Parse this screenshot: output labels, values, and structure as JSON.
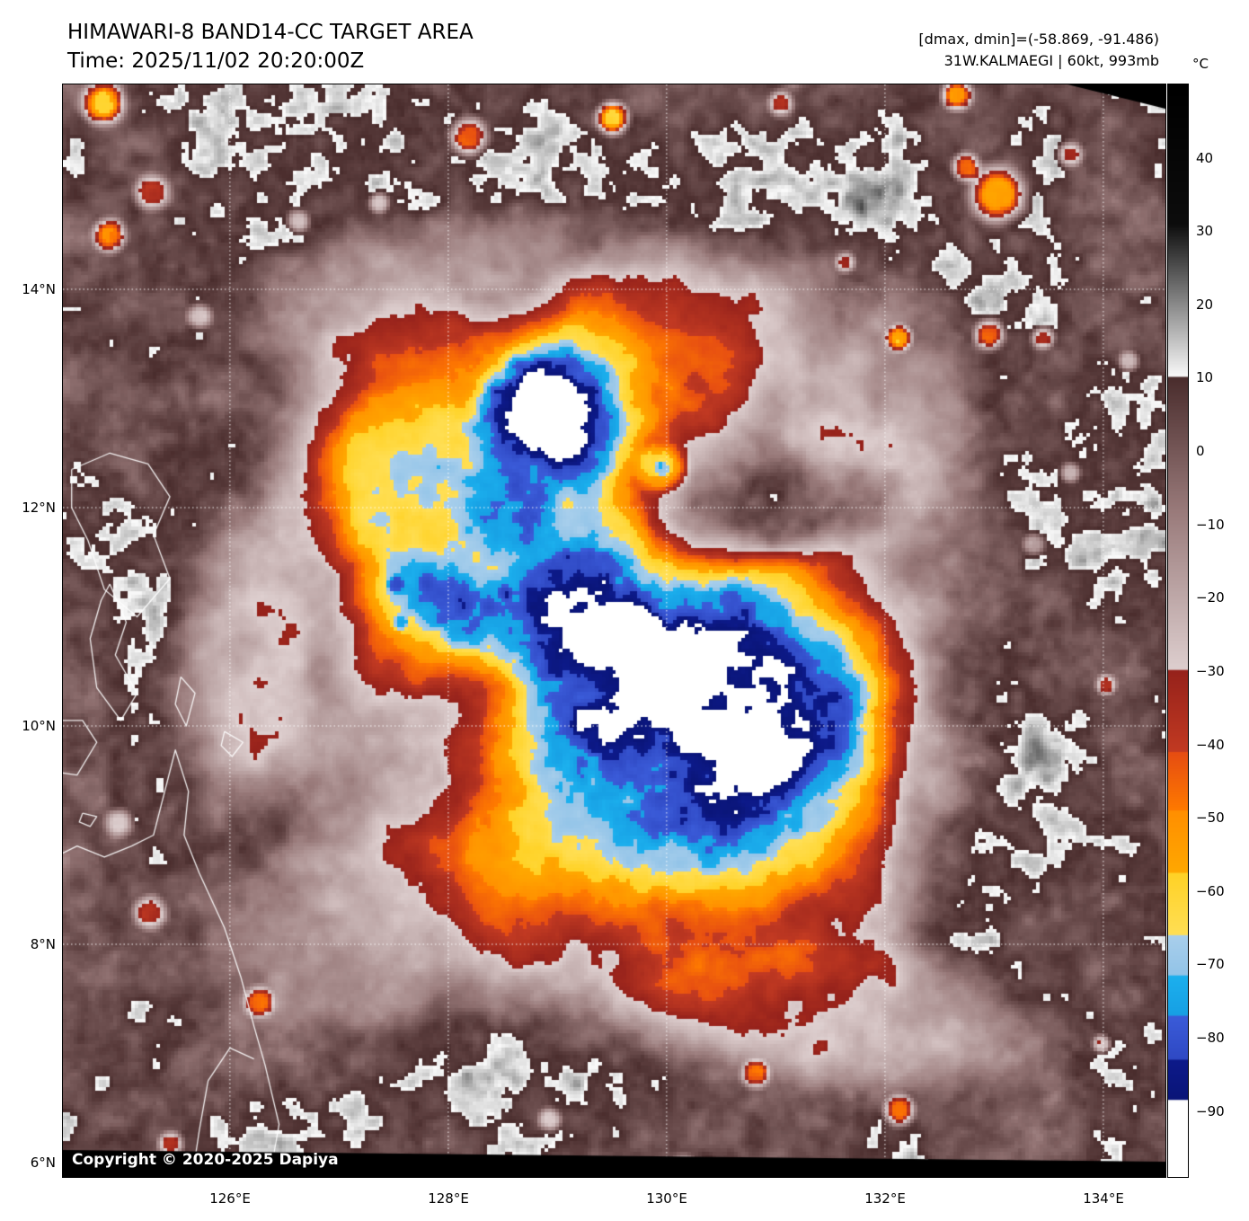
{
  "header": {
    "title": "HIMAWARI-8 BAND14-CC TARGET AREA",
    "time": "Time: 2025/11/02 20:20:00Z",
    "dmax_dmin": "[dmax, dmin]=(-58.869, -91.486)",
    "storm_info": "31W.KALMAEGI | 60kt, 993mb"
  },
  "colorbar": {
    "unit": "°C",
    "tick_labels": [
      "40",
      "30",
      "20",
      "10",
      "0",
      "−10",
      "−20",
      "−30",
      "−40",
      "−50",
      "−60",
      "−70",
      "−80",
      "−90"
    ],
    "stops": [
      [
        50,
        "#000000"
      ],
      [
        31,
        "#0d0d0d"
      ],
      [
        10.2,
        "#fafafa"
      ],
      [
        10.1,
        "#4a2d2d"
      ],
      [
        -8,
        "#997a7a"
      ],
      [
        -29.8,
        "#decfcf"
      ],
      [
        -29.9,
        "#96221b"
      ],
      [
        -41,
        "#c23a22"
      ],
      [
        -41.1,
        "#e64d12"
      ],
      [
        -49,
        "#ff7a00"
      ],
      [
        -49.1,
        "#ff8f00"
      ],
      [
        -57.5,
        "#ffa800"
      ],
      [
        -57.6,
        "#ffd226"
      ],
      [
        -66,
        "#ffdf55"
      ],
      [
        -66.1,
        "#a9cfec"
      ],
      [
        -71.5,
        "#93c4e8"
      ],
      [
        -71.6,
        "#1cb0ee"
      ],
      [
        -77,
        "#17a0e4"
      ],
      [
        -77.1,
        "#3b5cd9"
      ],
      [
        -83,
        "#2f49c4"
      ],
      [
        -83.1,
        "#0d1a8a"
      ],
      [
        -88.5,
        "#0a1578"
      ],
      [
        -88.6,
        "#ffffff"
      ],
      [
        -99,
        "#ffffff"
      ]
    ]
  },
  "axes": {
    "lat_labels": [
      "14°N",
      "12°N",
      "10°N",
      "8°N",
      "6°N"
    ],
    "lon_labels": [
      "126°E",
      "128°E",
      "130°E",
      "132°E",
      "134°E"
    ]
  },
  "map": {
    "copyright": "Copyright © 2020-2025 Dapiya"
  }
}
